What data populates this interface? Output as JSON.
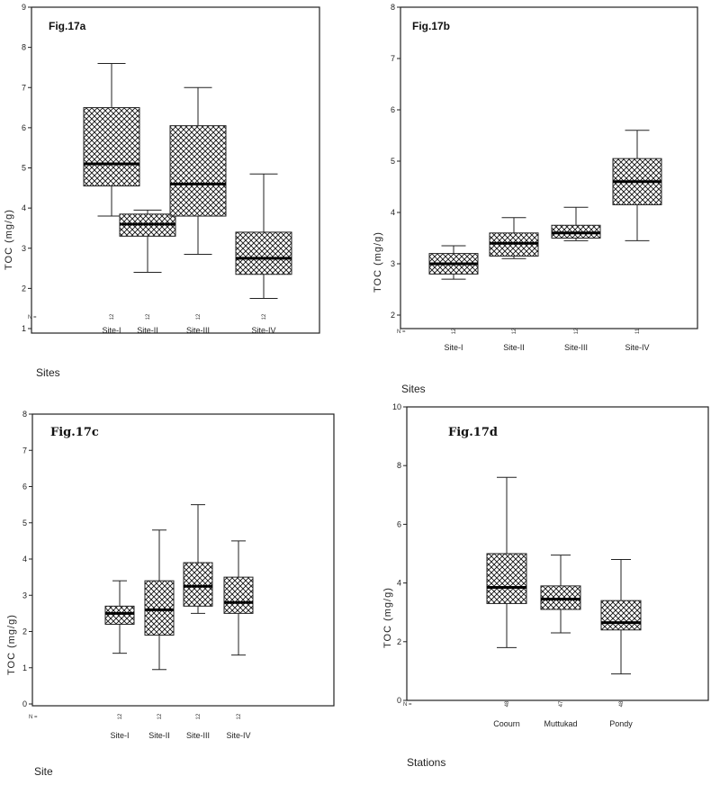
{
  "chart_data": [
    {
      "type": "box",
      "title": "Fig.17a",
      "ylabel": "TOC (mg/g)",
      "xlabel": "Sites",
      "n_prefix": "N =",
      "ylim": [
        1,
        9
      ],
      "yticks": [
        1,
        2,
        3,
        4,
        5,
        6,
        7,
        8,
        9
      ],
      "categories": [
        "Site-I",
        "Site-II",
        "Site-III",
        "Site-IV"
      ],
      "n": [
        "12",
        "12",
        "12",
        "12"
      ],
      "boxes": [
        {
          "min": 3.8,
          "q1": 4.55,
          "median": 5.1,
          "q3": 6.5,
          "max": 7.6
        },
        {
          "min": 2.4,
          "q1": 3.3,
          "median": 3.6,
          "q3": 3.85,
          "max": 3.95
        },
        {
          "min": 2.85,
          "q1": 3.8,
          "median": 4.6,
          "q3": 6.05,
          "max": 7.0
        },
        {
          "min": 1.75,
          "q1": 2.35,
          "median": 2.75,
          "q3": 3.4,
          "max": 4.85
        }
      ]
    },
    {
      "type": "box",
      "title": "Fig.17b",
      "ylabel": "TOC (mg/g)",
      "xlabel": "Sites",
      "n_prefix": "N =",
      "ylim": [
        2,
        8
      ],
      "yticks": [
        2,
        3,
        4,
        5,
        6,
        7,
        8
      ],
      "categories": [
        "Site-I",
        "Site-II",
        "Site-III",
        "Site-IV"
      ],
      "n": [
        "12",
        "12",
        "12",
        "11"
      ],
      "boxes": [
        {
          "min": 2.7,
          "q1": 2.8,
          "median": 3.0,
          "q3": 3.2,
          "max": 3.35
        },
        {
          "min": 3.1,
          "q1": 3.15,
          "median": 3.4,
          "q3": 3.6,
          "max": 3.9
        },
        {
          "min": 3.45,
          "q1": 3.5,
          "median": 3.6,
          "q3": 3.75,
          "max": 4.1
        },
        {
          "min": 3.45,
          "q1": 4.15,
          "median": 4.6,
          "q3": 5.05,
          "max": 5.6
        }
      ]
    },
    {
      "type": "box",
      "title": "Fig.17c",
      "ylabel": "TOC (mg/g)",
      "xlabel": "Site",
      "n_prefix": "N =",
      "ylim": [
        0,
        8
      ],
      "yticks": [
        0,
        1,
        2,
        3,
        4,
        5,
        6,
        7,
        8
      ],
      "categories": [
        "Site-I",
        "Site-II",
        "Site-III",
        "Site-IV"
      ],
      "n": [
        "12",
        "12",
        "12",
        "12"
      ],
      "boxes": [
        {
          "min": 1.4,
          "q1": 2.2,
          "median": 2.5,
          "q3": 2.7,
          "max": 3.4
        },
        {
          "min": 0.95,
          "q1": 1.9,
          "median": 2.6,
          "q3": 3.4,
          "max": 4.8
        },
        {
          "min": 2.5,
          "q1": 2.7,
          "median": 3.25,
          "q3": 3.9,
          "max": 5.5
        },
        {
          "min": 1.35,
          "q1": 2.5,
          "median": 2.8,
          "q3": 3.5,
          "max": 4.5
        }
      ]
    },
    {
      "type": "box",
      "title": "Fig.17d",
      "ylabel": "TOC (mg/g)",
      "xlabel": "Stations",
      "n_prefix": "N =",
      "ylim": [
        0,
        10
      ],
      "yticks": [
        0,
        2,
        4,
        6,
        8,
        10
      ],
      "categories": [
        "Coourn",
        "Muttukad",
        "Pondy"
      ],
      "n": [
        "48",
        "47",
        "48"
      ],
      "boxes": [
        {
          "min": 1.8,
          "q1": 3.3,
          "median": 3.85,
          "q3": 5.0,
          "max": 7.6
        },
        {
          "min": 2.3,
          "q1": 3.1,
          "median": 3.45,
          "q3": 3.9,
          "max": 4.95
        },
        {
          "min": 0.9,
          "q1": 2.4,
          "median": 2.65,
          "q3": 3.4,
          "max": 4.8
        }
      ]
    }
  ]
}
